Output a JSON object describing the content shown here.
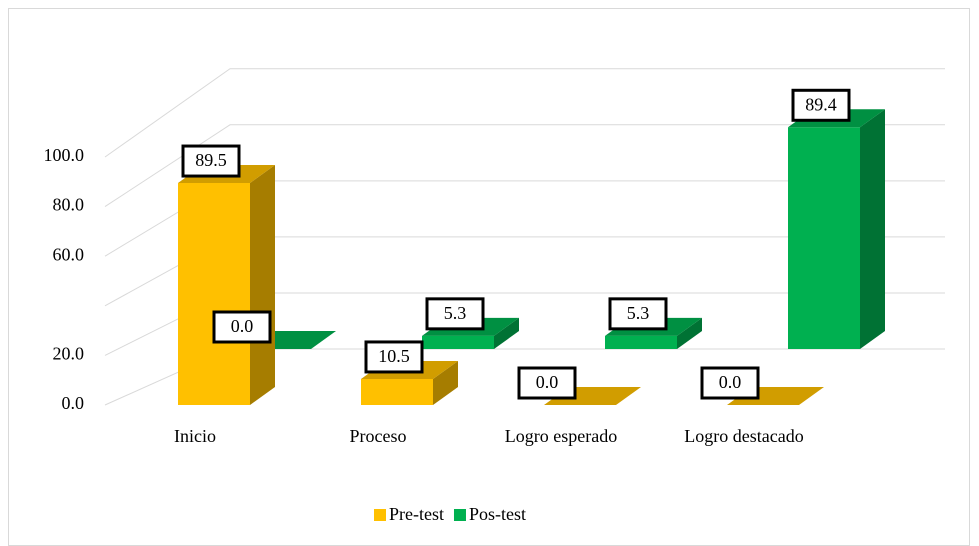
{
  "chart_data": {
    "type": "bar3d",
    "categories": [
      "Inicio",
      "Proceso",
      "Logro esperado",
      "Logro destacado"
    ],
    "series": [
      {
        "name": "Pre-test",
        "color": "#FFC000",
        "values": [
          89.5,
          10.5,
          0.0,
          0.0
        ],
        "value_labels": [
          "89.5",
          "10.5",
          "0.0",
          "0.0"
        ]
      },
      {
        "name": "Pos-test",
        "color": "#00B050",
        "values": [
          0.0,
          5.3,
          5.3,
          89.4
        ],
        "value_labels": [
          "0.0",
          "5.3",
          "5.3",
          "89.4"
        ]
      }
    ],
    "ylim": [
      0,
      100
    ],
    "yticks": [
      {
        "value": 0,
        "label": "0.0"
      },
      {
        "value": 20,
        "label": "20.0"
      },
      {
        "value": 40,
        "label": null
      },
      {
        "value": 60,
        "label": "60.0"
      },
      {
        "value": 80,
        "label": "80.0"
      },
      {
        "value": 100,
        "label": "100.0"
      }
    ],
    "grid": true,
    "legend": "bottom"
  }
}
